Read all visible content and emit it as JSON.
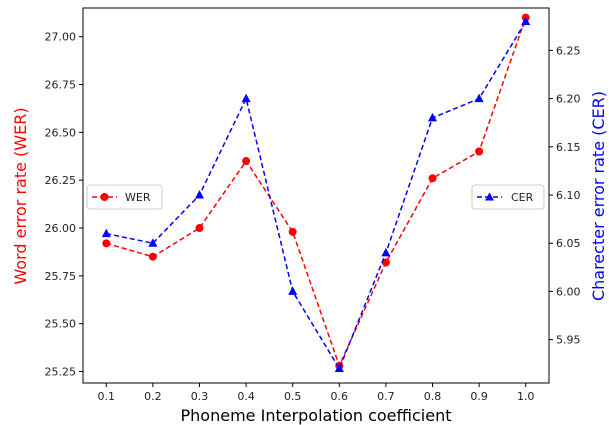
{
  "chart_data": {
    "type": "line",
    "title": "",
    "xlabel": "Phoneme Interpolation coefficient",
    "x": [
      0.1,
      0.2,
      0.3,
      0.4,
      0.5,
      0.6,
      0.7,
      0.8,
      0.9,
      1.0
    ],
    "x_tick_labels": [
      "0.1",
      "0.2",
      "0.3",
      "0.4",
      "0.5",
      "0.6",
      "0.7",
      "0.8",
      "0.9",
      "1.0"
    ],
    "xlim": [
      0.05,
      1.05
    ],
    "y_left": {
      "label": "Word error rate (WER)",
      "color": "#ff0000",
      "ylim": [
        25.19,
        27.15
      ],
      "ticks": [
        25.25,
        25.5,
        25.75,
        26.0,
        26.25,
        26.5,
        26.75,
        27.0
      ],
      "tick_labels": [
        "25.25",
        "25.50",
        "25.75",
        "26.00",
        "26.25",
        "26.50",
        "26.75",
        "27.00"
      ]
    },
    "y_right": {
      "label": "Charecter error rate (CER)",
      "color": "#0000ff",
      "ylim": [
        5.905,
        6.294
      ],
      "ticks": [
        5.95,
        6.0,
        6.05,
        6.1,
        6.15,
        6.2,
        6.25
      ],
      "tick_labels": [
        "5.95",
        "6.00",
        "6.05",
        "6.10",
        "6.15",
        "6.20",
        "6.25"
      ]
    },
    "series": [
      {
        "name": "WER",
        "axis": "left",
        "color": "#ff0000",
        "marker": "circle",
        "linestyle": "dashed",
        "values": [
          25.92,
          25.85,
          26.0,
          26.35,
          25.98,
          25.28,
          25.82,
          26.26,
          26.4,
          27.1
        ]
      },
      {
        "name": "CER",
        "axis": "right",
        "color": "#0000ff",
        "marker": "triangle",
        "linestyle": "dashed",
        "values": [
          6.06,
          6.05,
          6.1,
          6.2,
          6.0,
          5.92,
          6.04,
          6.18,
          6.2,
          6.28
        ]
      }
    ],
    "legend": [
      {
        "series": "WER",
        "placement": "center-left"
      },
      {
        "series": "CER",
        "placement": "center-right"
      }
    ],
    "grid": false
  }
}
